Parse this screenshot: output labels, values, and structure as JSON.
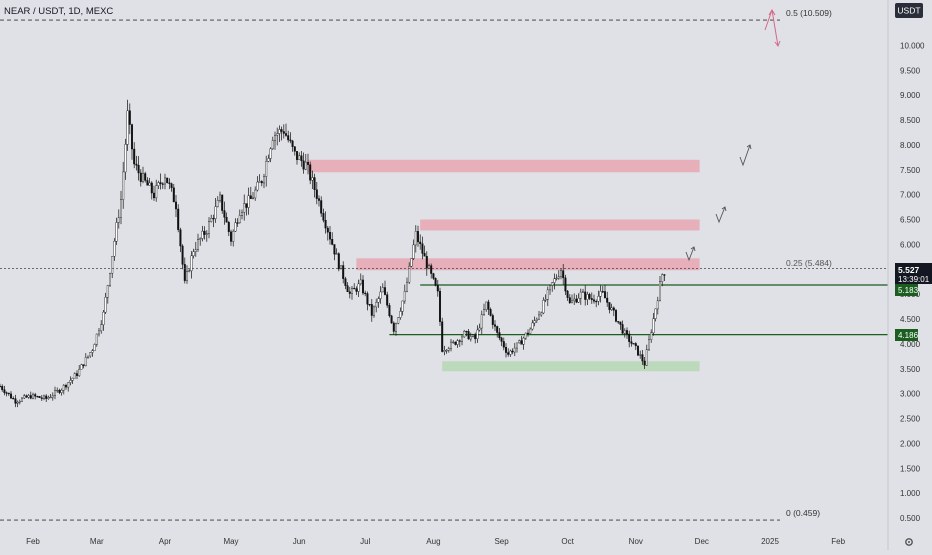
{
  "header": {
    "symbol_text": "NEAR / USDT, 1D, MEXC",
    "currency_button": "USDT"
  },
  "price_scale": {
    "ticks": [
      "10.000",
      "9.500",
      "9.000",
      "8.500",
      "8.000",
      "7.500",
      "7.000",
      "6.500",
      "6.000",
      "5.500",
      "5.000",
      "4.500",
      "4.000",
      "3.500",
      "3.000",
      "2.500",
      "2.000",
      "1.500",
      "1.000",
      "0.500"
    ],
    "last_price": "5.527",
    "countdown": "13:39:01",
    "level_upper": "5.183",
    "level_lower": "4.186"
  },
  "time_scale": {
    "labels": [
      "Feb",
      "Mar",
      "Apr",
      "May",
      "Jun",
      "Jul",
      "Aug",
      "Sep",
      "Oct",
      "Nov",
      "Dec",
      "2025",
      "Feb"
    ]
  },
  "colors": {
    "background": "#dfe1e6",
    "up_candle": "#ffffff",
    "down_candle": "#111111",
    "resistance_zone": "#e8a6b0",
    "support_zone": "#b9d8b6",
    "support_line": "#1b5e20",
    "fib_line": "#333333",
    "arrow_pink": "#d46a87",
    "arrow_gray": "#555555"
  },
  "chart_data": {
    "type": "candlestick",
    "title": "NEAR / USDT, 1D, MEXC",
    "ylim": [
      0.3,
      10.9
    ],
    "x_range": [
      "2024-01-17",
      "2025-02-28"
    ],
    "fib_levels": [
      {
        "label": "0.5 (10.509)",
        "value": 10.509
      },
      {
        "label": "0.25 (5.484)",
        "value": 5.484
      },
      {
        "label": "0 (0.459)",
        "value": 0.459
      }
    ],
    "horizontal_levels": [
      5.183,
      4.186
    ],
    "resistance_zones": [
      {
        "from": "2024-06-05",
        "to": "2024-11-30",
        "low": 7.45,
        "high": 7.7
      },
      {
        "from": "2024-07-26",
        "to": "2024-11-30",
        "low": 6.28,
        "high": 6.5
      },
      {
        "from": "2024-06-27",
        "to": "2024-11-30",
        "low": 5.48,
        "high": 5.72
      }
    ],
    "support_zone": {
      "from": "2024-08-05",
      "to": "2024-11-30",
      "low": 3.45,
      "high": 3.65
    },
    "last_price": 5.527,
    "close_series": [
      [
        "2024-01-17",
        3.15
      ],
      [
        "2024-01-24",
        2.85
      ],
      [
        "2024-01-31",
        2.95
      ],
      [
        "2024-02-07",
        2.9
      ],
      [
        "2024-02-14",
        3.1
      ],
      [
        "2024-02-21",
        3.4
      ],
      [
        "2024-02-28",
        3.9
      ],
      [
        "2024-03-04",
        4.6
      ],
      [
        "2024-03-08",
        5.8
      ],
      [
        "2024-03-12",
        6.9
      ],
      [
        "2024-03-15",
        8.6
      ],
      [
        "2024-03-18",
        7.6
      ],
      [
        "2024-03-22",
        7.3
      ],
      [
        "2024-03-27",
        7.0
      ],
      [
        "2024-04-01",
        7.4
      ],
      [
        "2024-04-06",
        6.8
      ],
      [
        "2024-04-10",
        5.2
      ],
      [
        "2024-04-14",
        5.9
      ],
      [
        "2024-04-20",
        6.3
      ],
      [
        "2024-04-26",
        6.9
      ],
      [
        "2024-05-01",
        6.1
      ],
      [
        "2024-05-05",
        6.7
      ],
      [
        "2024-05-10",
        6.9
      ],
      [
        "2024-05-15",
        7.3
      ],
      [
        "2024-05-20",
        8.2
      ],
      [
        "2024-05-25",
        8.3
      ],
      [
        "2024-05-30",
        7.8
      ],
      [
        "2024-06-04",
        7.6
      ],
      [
        "2024-06-09",
        7.0
      ],
      [
        "2024-06-14",
        6.3
      ],
      [
        "2024-06-19",
        5.6
      ],
      [
        "2024-06-24",
        5.0
      ],
      [
        "2024-06-29",
        5.2
      ],
      [
        "2024-07-04",
        4.6
      ],
      [
        "2024-07-09",
        5.1
      ],
      [
        "2024-07-14",
        4.3
      ],
      [
        "2024-07-19",
        5.0
      ],
      [
        "2024-07-24",
        6.2
      ],
      [
        "2024-07-29",
        5.6
      ],
      [
        "2024-08-03",
        5.0
      ],
      [
        "2024-08-05",
        3.9
      ],
      [
        "2024-08-10",
        4.0
      ],
      [
        "2024-08-15",
        4.2
      ],
      [
        "2024-08-20",
        4.1
      ],
      [
        "2024-08-25",
        4.8
      ],
      [
        "2024-08-30",
        4.2
      ],
      [
        "2024-09-04",
        3.8
      ],
      [
        "2024-09-09",
        4.0
      ],
      [
        "2024-09-14",
        4.3
      ],
      [
        "2024-09-19",
        4.7
      ],
      [
        "2024-09-24",
        5.2
      ],
      [
        "2024-09-28",
        5.5
      ],
      [
        "2024-10-02",
        4.8
      ],
      [
        "2024-10-07",
        5.0
      ],
      [
        "2024-10-12",
        4.9
      ],
      [
        "2024-10-17",
        5.0
      ],
      [
        "2024-10-22",
        4.6
      ],
      [
        "2024-10-27",
        4.2
      ],
      [
        "2024-11-01",
        3.9
      ],
      [
        "2024-11-05",
        3.6
      ],
      [
        "2024-11-09",
        4.5
      ],
      [
        "2024-11-13",
        5.4
      ],
      [
        "2024-11-15",
        5.53
      ]
    ]
  }
}
